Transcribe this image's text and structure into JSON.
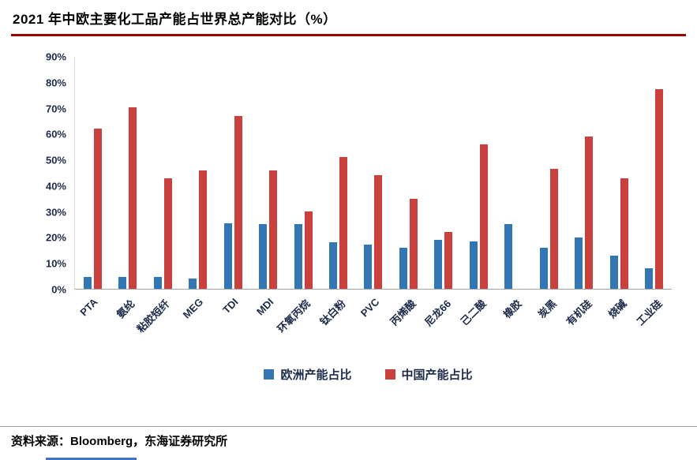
{
  "title": "2021 年中欧主要化工品产能占世界总产能对比（%）",
  "accent_colors": {
    "title_underline": "#990000",
    "europe_blue": "#3277b3",
    "china_red": "#c9403d"
  },
  "chart_data": {
    "type": "bar",
    "title": "2021 年中欧主要化工品产能占世界总产能对比（%）",
    "categories": [
      "PTA",
      "氨纶",
      "粘胶短纤",
      "MEG",
      "TDI",
      "MDI",
      "环氧丙烷",
      "钛白粉",
      "PVC",
      "丙烯酸",
      "尼龙66",
      "己二酸",
      "橡胶",
      "炭黑",
      "有机硅",
      "烧碱",
      "工业硅"
    ],
    "series": [
      {
        "name": "欧洲产能占比",
        "color": "#3277b3",
        "values": [
          4.5,
          4.5,
          4.5,
          4,
          25.5,
          25,
          25,
          18,
          17,
          16,
          19,
          18.5,
          25,
          16,
          20,
          13,
          8
        ]
      },
      {
        "name": "中国产能占比",
        "color": "#c9403d",
        "values": [
          62,
          70.5,
          43,
          46,
          67,
          46,
          30,
          51,
          44,
          35,
          22,
          56,
          0,
          46.5,
          59,
          43,
          77.5
        ]
      }
    ],
    "xlabel": "",
    "ylabel": "",
    "ylim": [
      0,
      90
    ],
    "ytick_labels": [
      "0%",
      "10%",
      "20%",
      "30%",
      "40%",
      "50%",
      "60%",
      "70%",
      "80%",
      "90%"
    ],
    "grid": false,
    "legend_position": "bottom",
    "xtick_rotation": 45
  },
  "footer": {
    "source": "资料来源：Bloomberg，东海证券研究所"
  }
}
